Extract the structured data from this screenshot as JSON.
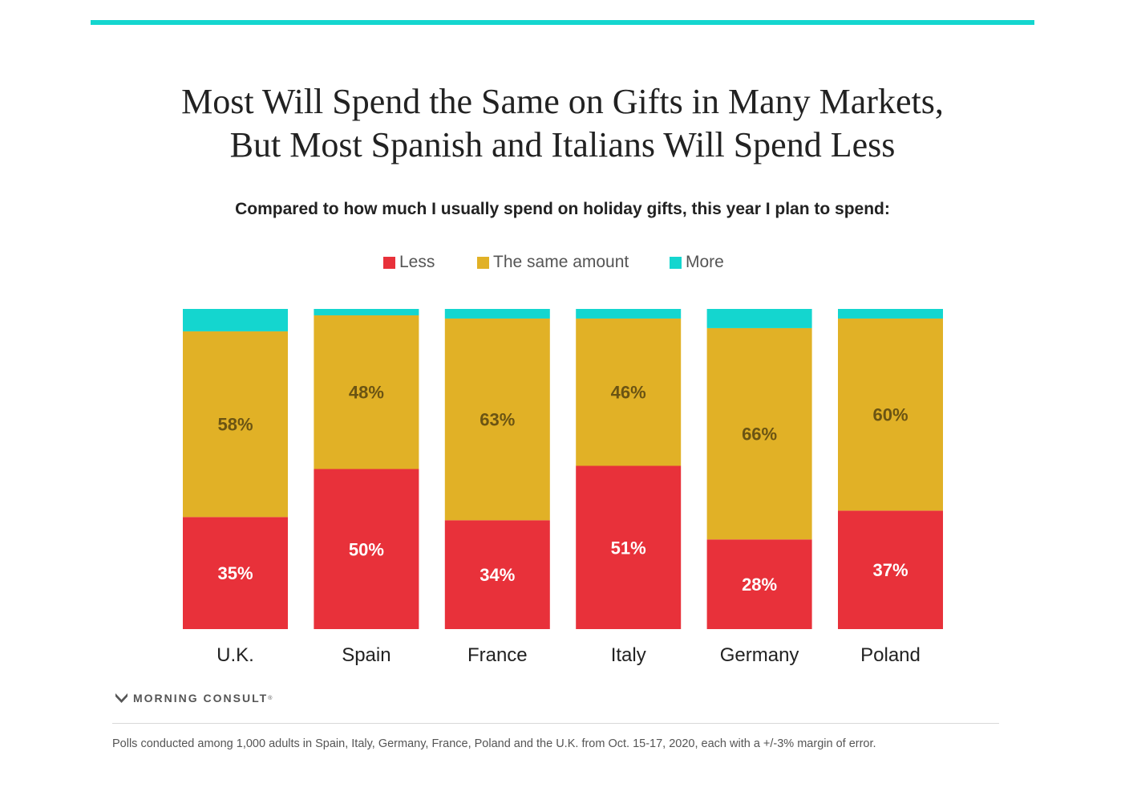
{
  "title": {
    "line1": "Most Will Spend the Same on Gifts in Many Markets,",
    "line2": "But Most Spanish and Italians Will Spend Less"
  },
  "subtitle": "Compared to how much I usually spend on holiday gifts, this year I plan to spend:",
  "colors": {
    "less": "#e8313a",
    "same": "#e1b126",
    "more": "#14d6cf",
    "same_label": "#6b5413",
    "less_label": "#ffffff"
  },
  "chart_data": {
    "type": "bar",
    "stacked": true,
    "orientation": "vertical",
    "title": "Most Will Spend the Same on Gifts in Many Markets, But Most Spanish and Italians Will Spend Less",
    "subtitle": "Compared to how much I usually spend on holiday gifts, this year I plan to spend:",
    "categories": [
      "U.K.",
      "Spain",
      "France",
      "Italy",
      "Germany",
      "Poland"
    ],
    "series": [
      {
        "name": "Less",
        "values": [
          35,
          50,
          34,
          51,
          28,
          37
        ],
        "labels": [
          "35%",
          "50%",
          "34%",
          "51%",
          "28%",
          "37%"
        ]
      },
      {
        "name": "The same amount",
        "values": [
          58,
          48,
          63,
          46,
          66,
          60
        ],
        "labels": [
          "58%",
          "48%",
          "63%",
          "46%",
          "66%",
          "60%"
        ]
      },
      {
        "name": "More",
        "values": [
          7,
          2,
          3,
          3,
          6,
          3
        ]
      }
    ],
    "ylim": [
      0,
      100
    ],
    "legend_position": "top",
    "grid": false
  },
  "legend": {
    "less": "Less",
    "same": "The same amount",
    "more": "More"
  },
  "brand": "MORNING CONSULT",
  "footnote": "Polls conducted among 1,000 adults in Spain, Italy, Germany, France, Poland and the U.K. from Oct. 15-17, 2020, each with a +/-3% margin of error."
}
